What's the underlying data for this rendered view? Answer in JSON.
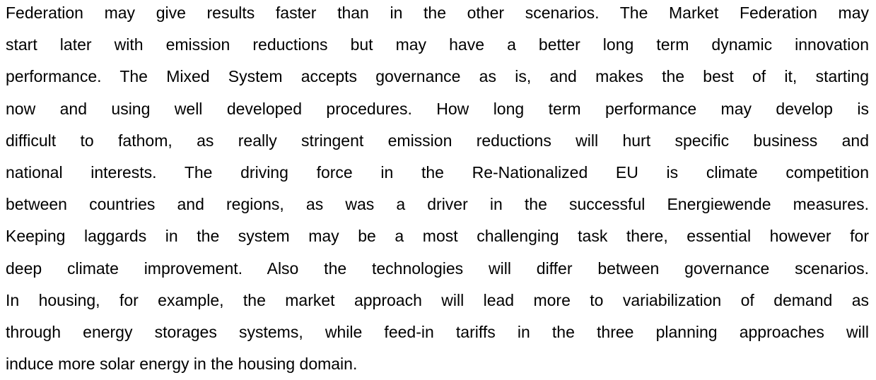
{
  "paragraph": {
    "lines": [
      "Federation may give results faster than in the other scenarios. The Market Federation may",
      "start later with emission reductions but may have a better long term dynamic innovation",
      "performance. The Mixed System accepts governance as is, and makes the best of it, starting",
      "now and using well developed procedures. How long term performance may develop is",
      "difficult to fathom, as really stringent emission reductions will hurt specific business and",
      "national interests. The driving force in the Re-Nationalized EU is climate competition",
      "between countries and regions, as was a driver in the successful Energiewende measures.",
      "Keeping laggards in the system may be a most challenging task there, essential however for",
      "deep climate improvement.  Also the technologies will differ between governance scenarios.",
      "In housing, for example, the market approach will lead more to variabilization of demand as",
      "through energy storages systems, while feed-in tariffs in the three planning approaches will",
      "induce more solar energy in the housing domain."
    ]
  }
}
